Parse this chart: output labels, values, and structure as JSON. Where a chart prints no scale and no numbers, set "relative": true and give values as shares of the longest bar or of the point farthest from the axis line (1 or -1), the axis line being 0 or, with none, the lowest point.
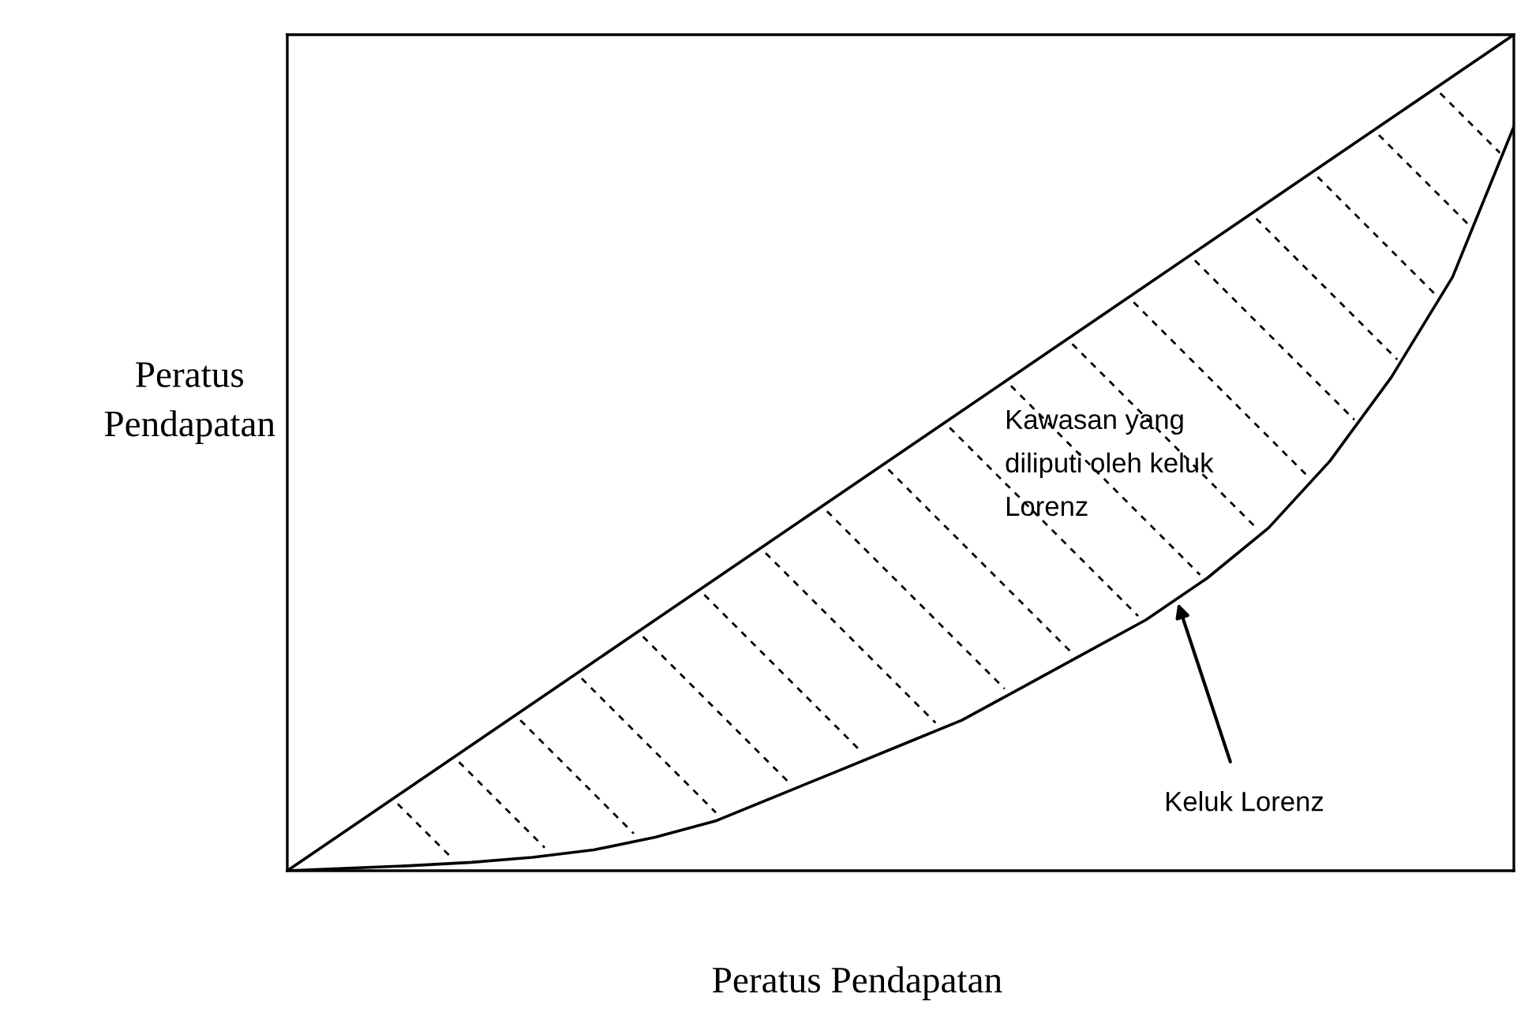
{
  "chart_data": {
    "type": "line",
    "relative": true,
    "xlabel": "Peratus Pendapatan",
    "ylabel": "Peratus\nPendapatan",
    "categories": [
      null,
      null,
      null,
      null,
      null,
      null,
      null,
      null,
      null,
      null,
      null,
      null,
      null,
      null,
      null,
      null,
      null,
      null,
      null,
      null,
      null
    ],
    "series": [
      {
        "color": "#000000",
        "values": [
          0,
          0.05,
          0.1,
          0.15,
          0.2,
          0.25,
          0.3,
          0.35,
          0.4,
          0.45,
          0.5,
          0.55,
          0.6,
          0.65,
          0.7,
          0.75,
          0.8,
          0.85,
          0.9,
          0.95,
          1.0
        ]
      },
      {
        "color": "#000000",
        "values": [
          0,
          0.003,
          0.006,
          0.01,
          0.016,
          0.025,
          0.04,
          0.06,
          0.09,
          0.12,
          0.15,
          0.18,
          0.22,
          0.26,
          0.3,
          0.35,
          0.41,
          0.49,
          0.59,
          0.71,
          0.89
        ]
      }
    ],
    "line_style": "solid",
    "annotations": [
      "Kawasan yang\ndiliputi oleh keluk\nLorenz",
      "Keluk Lorenz"
    ]
  }
}
